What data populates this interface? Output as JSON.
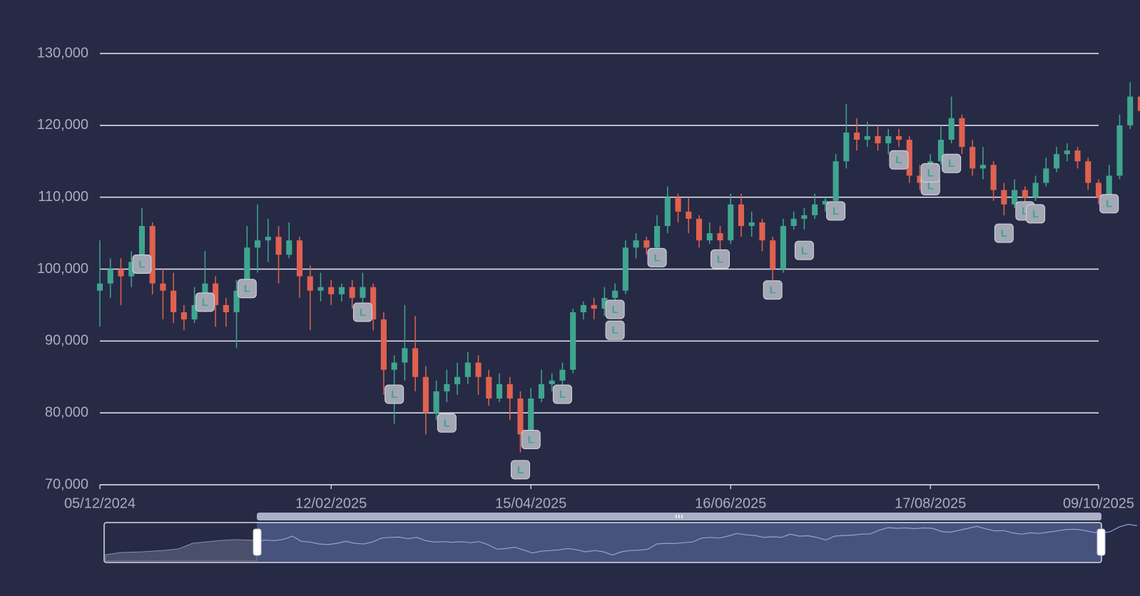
{
  "chart_data": {
    "type": "candlestick",
    "up_color": "#3fa58f",
    "down_color": "#e0614f",
    "grid": true,
    "ylim": [
      70000,
      130000
    ],
    "yticks": [
      {
        "value": 70000,
        "label": "70,000"
      },
      {
        "value": 80000,
        "label": "80,000"
      },
      {
        "value": 90000,
        "label": "90,000"
      },
      {
        "value": 100000,
        "label": "100,000"
      },
      {
        "value": 110000,
        "label": "110,000"
      },
      {
        "value": 120000,
        "label": "120,000"
      },
      {
        "value": 130000,
        "label": "130,000"
      }
    ],
    "categories": [
      "05/12/2024",
      null,
      null,
      null,
      null,
      null,
      null,
      null,
      null,
      null,
      null,
      null,
      null,
      null,
      null,
      null,
      null,
      null,
      null,
      null,
      null,
      null,
      "12/02/2025",
      null,
      null,
      null,
      null,
      null,
      null,
      null,
      null,
      null,
      null,
      null,
      null,
      null,
      null,
      null,
      null,
      null,
      null,
      "15/04/2025",
      null,
      null,
      null,
      null,
      null,
      null,
      null,
      null,
      null,
      null,
      null,
      null,
      null,
      null,
      null,
      null,
      null,
      null,
      "16/06/2025",
      null,
      null,
      null,
      null,
      null,
      null,
      null,
      null,
      null,
      null,
      null,
      null,
      null,
      null,
      null,
      null,
      null,
      null,
      "17/08/2025",
      null,
      null,
      null,
      null,
      null,
      null,
      null,
      null,
      null,
      null,
      null,
      null,
      null,
      null,
      null,
      "09/10/2025"
    ],
    "ohlc": [
      [
        97000,
        98000,
        92000,
        104000
      ],
      [
        98000,
        100000,
        96000,
        101500
      ],
      [
        100000,
        99000,
        95000,
        101500
      ],
      [
        99000,
        101000,
        97500,
        102500
      ],
      [
        101000,
        106000,
        100000,
        108500
      ],
      [
        106000,
        98000,
        96500,
        106500
      ],
      [
        98000,
        97000,
        93000,
        100000
      ],
      [
        97000,
        94000,
        92500,
        99500
      ],
      [
        94000,
        93000,
        91500,
        95000
      ],
      [
        93000,
        95000,
        92500,
        97500
      ],
      [
        95000,
        98000,
        94000,
        102500
      ],
      [
        98000,
        95000,
        92000,
        99000
      ],
      [
        95000,
        94000,
        92000,
        96000
      ],
      [
        94000,
        97000,
        89000,
        98500
      ],
      [
        97000,
        103000,
        96000,
        106000
      ],
      [
        103000,
        104000,
        99500,
        109000
      ],
      [
        104000,
        104500,
        101000,
        107000
      ],
      [
        104500,
        102000,
        98000,
        106000
      ],
      [
        102000,
        104000,
        101500,
        106500
      ],
      [
        104000,
        99000,
        96000,
        104500
      ],
      [
        99000,
        97000,
        91500,
        100500
      ],
      [
        97000,
        97500,
        95500,
        99500
      ],
      [
        97500,
        96500,
        95000,
        98500
      ],
      [
        96500,
        97500,
        95500,
        98000
      ],
      [
        97500,
        96000,
        94500,
        98500
      ],
      [
        96000,
        97500,
        94500,
        99500
      ],
      [
        97500,
        93000,
        91500,
        98000
      ],
      [
        93000,
        86000,
        82500,
        94000
      ],
      [
        86000,
        87000,
        78500,
        88000
      ],
      [
        87000,
        89000,
        84500,
        95000
      ],
      [
        89000,
        85000,
        83000,
        93500
      ],
      [
        85000,
        80000,
        77000,
        86500
      ],
      [
        80000,
        83000,
        79000,
        84500
      ],
      [
        83000,
        84000,
        81500,
        86000
      ],
      [
        84000,
        85000,
        82500,
        87000
      ],
      [
        85000,
        87000,
        84000,
        88500
      ],
      [
        87000,
        85000,
        82500,
        88000
      ],
      [
        85000,
        82000,
        81000,
        86000
      ],
      [
        82000,
        84000,
        81500,
        85500
      ],
      [
        84000,
        82000,
        79000,
        85000
      ],
      [
        82000,
        77000,
        74500,
        83000
      ],
      [
        77000,
        82000,
        75000,
        83500
      ],
      [
        82000,
        84000,
        81500,
        86000
      ],
      [
        84000,
        84500,
        83000,
        85500
      ],
      [
        84500,
        86000,
        83500,
        87000
      ],
      [
        86000,
        94000,
        85500,
        94500
      ],
      [
        94000,
        95000,
        93000,
        95500
      ],
      [
        95000,
        94500,
        93000,
        96000
      ],
      [
        94500,
        96000,
        93500,
        97500
      ],
      [
        96000,
        97000,
        93500,
        98000
      ],
      [
        97000,
        103000,
        96500,
        104000
      ],
      [
        103000,
        104000,
        101500,
        105000
      ],
      [
        104000,
        103000,
        102000,
        104500
      ],
      [
        103000,
        106000,
        102500,
        107500
      ],
      [
        106000,
        110000,
        105000,
        111500
      ],
      [
        110000,
        108000,
        106500,
        110500
      ],
      [
        108000,
        107000,
        105000,
        110000
      ],
      [
        107000,
        104000,
        103000,
        107500
      ],
      [
        104000,
        105000,
        103500,
        106500
      ],
      [
        105000,
        104000,
        101000,
        106000
      ],
      [
        104000,
        109000,
        103500,
        110500
      ],
      [
        109000,
        106000,
        104500,
        110500
      ],
      [
        106000,
        106500,
        104500,
        108000
      ],
      [
        106500,
        104000,
        102500,
        107000
      ],
      [
        104000,
        100000,
        98500,
        104500
      ],
      [
        100000,
        106000,
        99500,
        107000
      ],
      [
        106000,
        107000,
        105500,
        108000
      ],
      [
        107000,
        107500,
        105500,
        108500
      ],
      [
        107500,
        109000,
        107000,
        110500
      ],
      [
        109000,
        109500,
        108000,
        110000
      ],
      [
        109500,
        115000,
        109000,
        116000
      ],
      [
        115000,
        119000,
        114000,
        123000
      ],
      [
        119000,
        118000,
        116500,
        121000
      ],
      [
        118000,
        118500,
        117000,
        120500
      ],
      [
        118500,
        117500,
        116500,
        120000
      ],
      [
        117500,
        118500,
        116000,
        119500
      ],
      [
        118500,
        118000,
        117000,
        119500
      ],
      [
        118000,
        113000,
        112000,
        118500
      ],
      [
        113000,
        112000,
        111000,
        114500
      ],
      [
        112000,
        115000,
        111500,
        116000
      ],
      [
        115000,
        118000,
        114500,
        120000
      ],
      [
        118000,
        121000,
        117500,
        124000
      ],
      [
        121000,
        117000,
        116000,
        121500
      ],
      [
        117000,
        114000,
        113000,
        118000
      ],
      [
        114000,
        114500,
        112500,
        117000
      ],
      [
        114500,
        111000,
        109500,
        115000
      ],
      [
        111000,
        109000,
        107500,
        112000
      ],
      [
        109000,
        111000,
        108500,
        112500
      ],
      [
        111000,
        110000,
        109000,
        111500
      ],
      [
        110000,
        112000,
        109500,
        113000
      ],
      [
        112000,
        114000,
        111500,
        115500
      ],
      [
        114000,
        116000,
        113500,
        117000
      ],
      [
        116000,
        116500,
        115000,
        117500
      ],
      [
        116500,
        115000,
        114000,
        117000
      ],
      [
        115000,
        112000,
        111000,
        115500
      ],
      [
        112000,
        110000,
        109000,
        112500
      ],
      [
        110000,
        113000,
        109500,
        114500
      ],
      [
        113000,
        120000,
        112500,
        121500
      ],
      [
        120000,
        124000,
        119500,
        126000
      ],
      [
        124000,
        122000,
        120500,
        124500
      ]
    ],
    "markers": [
      {
        "index": 4,
        "value": 100700,
        "label": "L"
      },
      {
        "index": 10,
        "value": 95400,
        "label": "L"
      },
      {
        "index": 14,
        "value": 97300,
        "label": "L"
      },
      {
        "index": 25,
        "value": 94000,
        "label": "L"
      },
      {
        "index": 28,
        "value": 82600,
        "label": "L"
      },
      {
        "index": 33,
        "value": 78600,
        "label": "L"
      },
      {
        "index": 40,
        "value": 72100,
        "label": "L"
      },
      {
        "index": 41,
        "value": 76300,
        "label": "L"
      },
      {
        "index": 44,
        "value": 82600,
        "label": "L"
      },
      {
        "index": 49,
        "value": 91500,
        "label": "L"
      },
      {
        "index": 49,
        "value": 94400,
        "label": "L"
      },
      {
        "index": 53,
        "value": 101600,
        "label": "L"
      },
      {
        "index": 59,
        "value": 101400,
        "label": "L"
      },
      {
        "index": 64,
        "value": 97100,
        "label": "L"
      },
      {
        "index": 67,
        "value": 102600,
        "label": "L"
      },
      {
        "index": 70,
        "value": 108100,
        "label": "L"
      },
      {
        "index": 76,
        "value": 115200,
        "label": "L"
      },
      {
        "index": 79,
        "value": 111600,
        "label": "L"
      },
      {
        "index": 79,
        "value": 113400,
        "label": "L"
      },
      {
        "index": 81,
        "value": 114700,
        "label": "L"
      },
      {
        "index": 86,
        "value": 105000,
        "label": "L"
      },
      {
        "index": 88,
        "value": 108100,
        "label": "L"
      },
      {
        "index": 89,
        "value": 107700,
        "label": "L"
      },
      {
        "index": 96,
        "value": 109100,
        "label": "L"
      }
    ]
  }
}
